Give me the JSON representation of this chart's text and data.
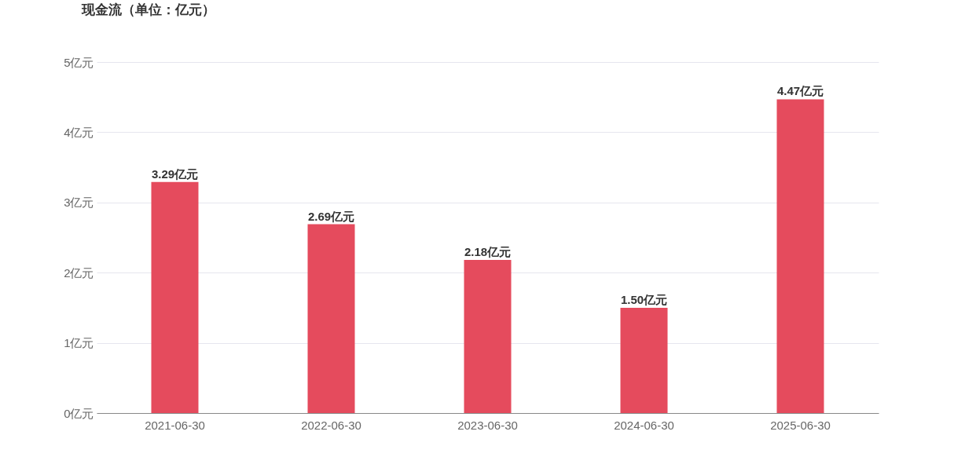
{
  "chart_data": {
    "type": "bar",
    "title": "现金流（单位：亿元）",
    "categories": [
      "2021-06-30",
      "2022-06-30",
      "2023-06-30",
      "2024-06-30",
      "2025-06-30"
    ],
    "series": [
      {
        "color": "#e54b5d",
        "values": [
          3.29,
          2.69,
          2.18,
          1.5,
          4.47
        ],
        "value_labels": [
          "3.29亿元",
          "2.69亿元",
          "2.18亿元",
          "1.50亿元",
          "4.47亿元"
        ]
      }
    ],
    "ylim": [
      0,
      5
    ],
    "yticks": [
      {
        "value": 0,
        "label": "0亿元"
      },
      {
        "value": 1,
        "label": "1亿元"
      },
      {
        "value": 2,
        "label": "2亿元"
      },
      {
        "value": 3,
        "label": "3亿元"
      },
      {
        "value": 4,
        "label": "4亿元"
      },
      {
        "value": 5,
        "label": "5亿元"
      }
    ],
    "grid": "y"
  }
}
